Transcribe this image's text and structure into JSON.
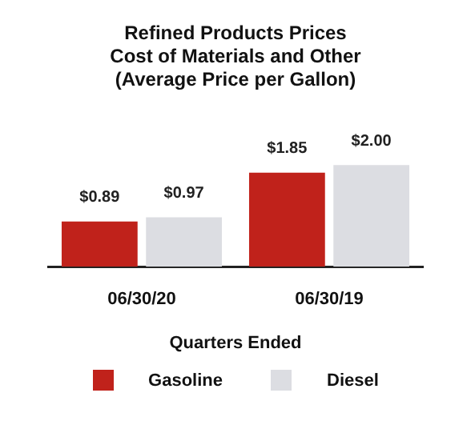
{
  "chart_data": {
    "type": "bar",
    "title": "Refined Products Prices\nCost of Materials and Other\n(Average Price per Gallon)",
    "xlabel": "Quarters Ended",
    "categories": [
      "06/30/20",
      "06/30/19"
    ],
    "series": [
      {
        "name": "Gasoline",
        "color": "#c0221b",
        "values": [
          0.89,
          1.85
        ],
        "value_labels": [
          "$0.89",
          "$1.85"
        ]
      },
      {
        "name": "Diesel",
        "color": "#dcdde2",
        "values": [
          0.97,
          2.0
        ],
        "value_labels": [
          "$0.97",
          "$2.00"
        ]
      }
    ],
    "grid": false,
    "legend": "bottom"
  }
}
